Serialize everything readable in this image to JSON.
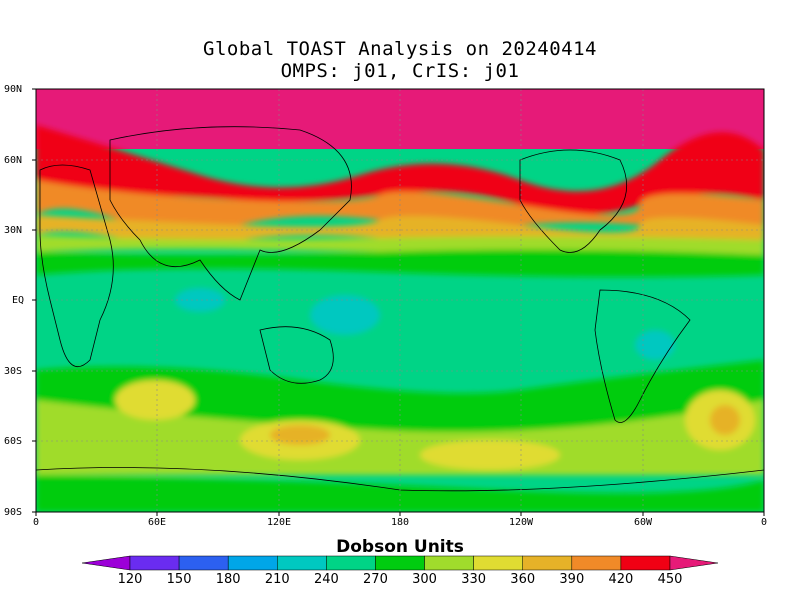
{
  "title_line1": "Global TOAST Analysis on 20240414",
  "title_line2": "OMPS: j01, CrIS: j01",
  "colorbar_title": "Dobson Units",
  "lat_labels": [
    "90N",
    "60N",
    "30N",
    "EQ",
    "30S",
    "60S",
    "90S"
  ],
  "lon_labels": [
    "0",
    "60E",
    "120E",
    "180",
    "120W",
    "60W",
    "0"
  ],
  "colorbar": {
    "levels": [
      "120",
      "150",
      "180",
      "210",
      "240",
      "270",
      "300",
      "330",
      "360",
      "390",
      "420",
      "450"
    ],
    "colors": [
      "#9c00d8",
      "#6a2cf0",
      "#2c60f0",
      "#00a6e8",
      "#00c8c0",
      "#00d486",
      "#00cc10",
      "#a0dc2c",
      "#e0dc32",
      "#e6b228",
      "#f08a28",
      "#f00014",
      "#e61a78"
    ]
  },
  "chart_data": {
    "type": "heatmap",
    "title": "Global TOAST Analysis on 20240414",
    "subtitle": "OMPS: j01, CrIS: j01",
    "legend_title": "Dobson Units",
    "xlim": [
      0,
      360
    ],
    "ylim": [
      -90,
      90
    ],
    "x_ticks": [
      "0",
      "60E",
      "120E",
      "180",
      "120W",
      "60W",
      "0"
    ],
    "y_ticks": [
      "90N",
      "60N",
      "30N",
      "EQ",
      "30S",
      "60S",
      "90S"
    ],
    "zonal_bands": [
      {
        "lat_range": [
          60,
          90
        ],
        "dobson": ">450"
      },
      {
        "lat_range": [
          45,
          60
        ],
        "dobson": "390-450"
      },
      {
        "lat_range": [
          30,
          45
        ],
        "dobson": "360-420"
      },
      {
        "lat_range": [
          20,
          30
        ],
        "dobson": "300-330"
      },
      {
        "lat_range": [
          -20,
          20
        ],
        "dobson": "270-300"
      },
      {
        "lat_range": [
          -45,
          -20
        ],
        "dobson": "270-330"
      },
      {
        "lat_range": [
          -60,
          -45
        ],
        "dobson": "330-390"
      },
      {
        "lat_range": [
          -90,
          -60
        ],
        "dobson": "300-330"
      }
    ],
    "grid": true
  }
}
